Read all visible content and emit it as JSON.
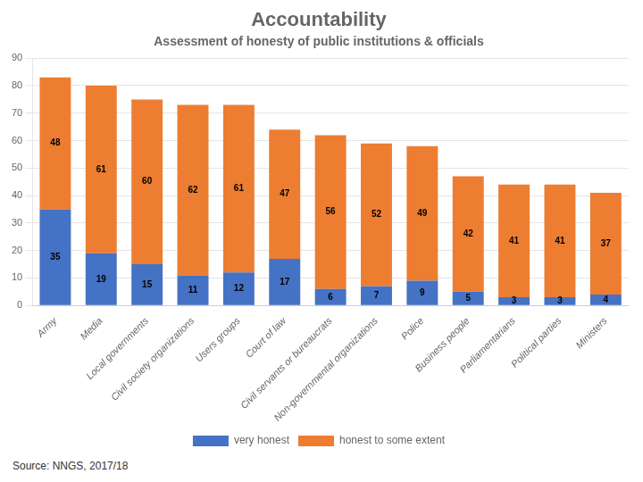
{
  "chart_data": {
    "type": "bar",
    "stacked": true,
    "data_labels": true,
    "grid": true,
    "legend": "bottom",
    "title": "Accountability",
    "subtitle": "Assessment of honesty of public institutions & officials",
    "source": "Source: NNGS, 2017/18",
    "categories": [
      "Army",
      "Media",
      "Local governments",
      "Civil society organizations",
      "Users groups",
      "Court of law",
      "Civil servants or bureaucrats",
      "Non-governmental organizations",
      "Police",
      "Business people",
      "Parliamentarians",
      "Political parties",
      "Ministers"
    ],
    "series": [
      {
        "name": "very honest",
        "color": "#4472C4",
        "values": [
          35,
          19,
          15,
          11,
          12,
          17,
          6,
          7,
          9,
          5,
          3,
          3,
          4
        ]
      },
      {
        "name": "honest to some extent",
        "color": "#ED7D31",
        "values": [
          48,
          61,
          60,
          62,
          61,
          47,
          56,
          52,
          49,
          42,
          41,
          41,
          37
        ]
      }
    ],
    "ylim": [
      0,
      90
    ],
    "yticks": [
      0,
      10,
      20,
      30,
      40,
      50,
      60,
      70,
      80,
      90
    ]
  }
}
